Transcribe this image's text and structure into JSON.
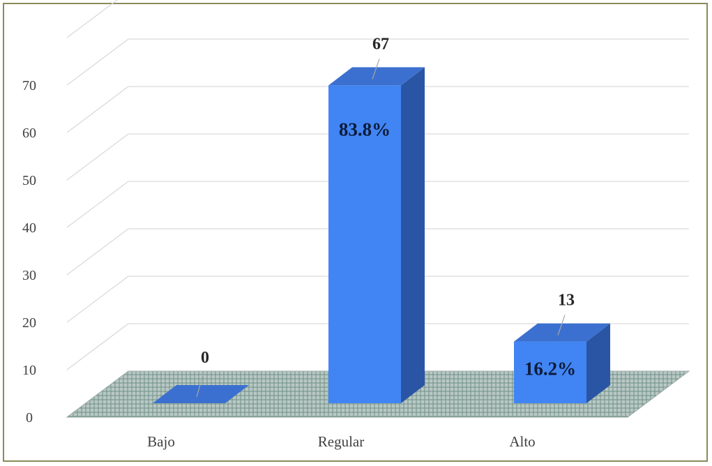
{
  "chart_data": {
    "type": "bar",
    "categories": [
      "Bajo",
      "Regular",
      "Alto"
    ],
    "values": [
      0,
      67,
      13
    ],
    "percent_labels": [
      "",
      "83.8%",
      "16.2%"
    ],
    "title": "",
    "xlabel": "",
    "ylabel": "",
    "ylim": [
      0,
      70
    ],
    "yticks": [
      0,
      10,
      20,
      30,
      40,
      50,
      60,
      70
    ],
    "grid": true,
    "style": "3d-column",
    "colors": {
      "bar_front": "#4185f4",
      "bar_top": "#3c70d0",
      "bar_side": "#2a55a4",
      "floor": "#a8b8b4",
      "floor_pattern": "#6f8f88",
      "grid": "#d9d9d9"
    }
  }
}
